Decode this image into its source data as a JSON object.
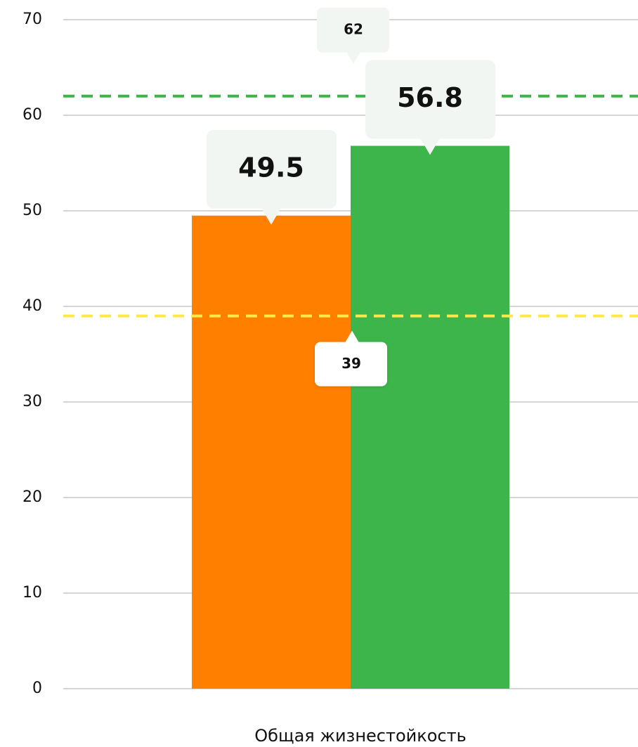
{
  "chart_data": {
    "type": "bar",
    "categories": [
      "Общая жизнестойкость"
    ],
    "series": [
      {
        "name": null,
        "color": "#ff8000",
        "values": [
          49.5
        ]
      },
      {
        "name": null,
        "color": "#3db54a",
        "values": [
          56.8
        ]
      }
    ],
    "reference_lines": [
      {
        "value": 62,
        "color": "#3cb44b"
      },
      {
        "value": 39,
        "color": "#ffe84a"
      }
    ],
    "ylim": [
      0,
      70
    ],
    "yticks": [
      0,
      10,
      20,
      30,
      40,
      50,
      60,
      70
    ],
    "grid": true
  }
}
